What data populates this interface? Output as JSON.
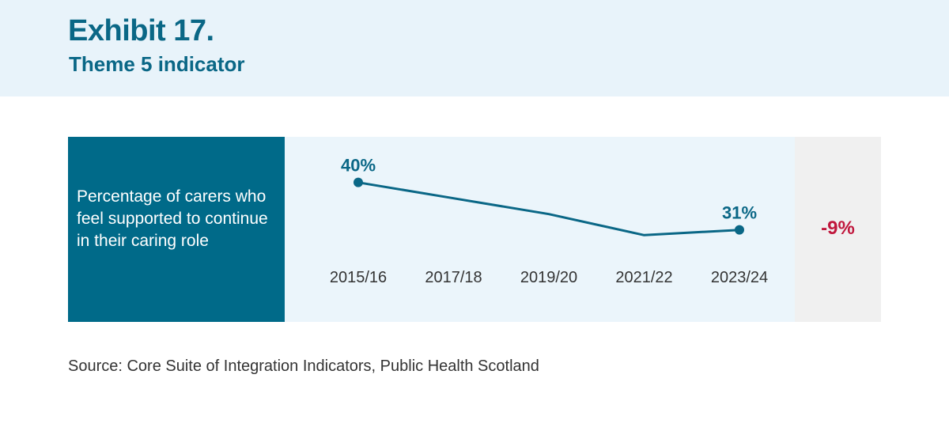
{
  "header": {
    "title": "Exhibit 17.",
    "subtitle": "Theme 5 indicator"
  },
  "indicator": {
    "label": "Percentage of carers who feel supported to continue in their caring role",
    "change": "-9%"
  },
  "chart_data": {
    "type": "line",
    "categories": [
      "2015/16",
      "2017/18",
      "2019/20",
      "2021/22",
      "2023/24"
    ],
    "series": [
      {
        "values": [
          40,
          37,
          34,
          30,
          31
        ]
      }
    ],
    "data_labels": [
      {
        "index": 0,
        "text": "40%"
      },
      {
        "index": 4,
        "text": "31%"
      }
    ],
    "markers_at": [
      0,
      4
    ],
    "ylim": [
      29,
      41
    ],
    "grid": false,
    "line_color": "#0a6786"
  },
  "source": "Source: Core Suite of Integration Indicators, Public Health Scotland"
}
